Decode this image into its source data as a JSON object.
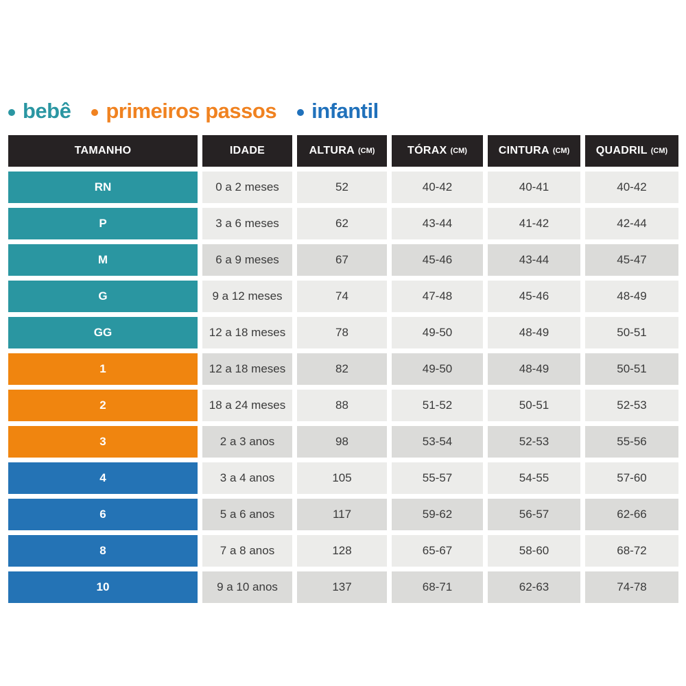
{
  "colors": {
    "header_bg": "#262223",
    "header_text": "#ffffff",
    "cell_light": "#ECECEA",
    "cell_dark": "#DBDBD9",
    "cell_text": "#3A3A3A",
    "group_bebe": "#2A96A1",
    "group_primeiros_passos": "#F0850F",
    "group_infantil": "#2473B5",
    "legend_bebe": "#2A96A2",
    "legend_primeiros_passos": "#F08220",
    "legend_infantil": "#2071BB"
  },
  "legend": {
    "items": [
      {
        "label": "bebê",
        "group": "bebe"
      },
      {
        "label": "primeiros passos",
        "group": "primeiros_passos"
      },
      {
        "label": "infantil",
        "group": "infantil"
      }
    ]
  },
  "table": {
    "headers": [
      {
        "label": "TAMANHO",
        "unit": ""
      },
      {
        "label": "IDADE",
        "unit": ""
      },
      {
        "label": "ALTURA",
        "unit": "(CM)"
      },
      {
        "label": "TÓRAX",
        "unit": "(CM)"
      },
      {
        "label": "CINTURA",
        "unit": "(CM)"
      },
      {
        "label": "QUADRIL",
        "unit": "(CM)"
      }
    ],
    "rows": [
      {
        "size": "RN",
        "group": "bebe",
        "age": "0 a 2 meses",
        "height": "52",
        "chest": "40-42",
        "waist": "40-41",
        "hip": "40-42",
        "shaded": false
      },
      {
        "size": "P",
        "group": "bebe",
        "age": "3 a 6 meses",
        "height": "62",
        "chest": "43-44",
        "waist": "41-42",
        "hip": "42-44",
        "shaded": false
      },
      {
        "size": "M",
        "group": "bebe",
        "age": "6 a 9 meses",
        "height": "67",
        "chest": "45-46",
        "waist": "43-44",
        "hip": "45-47",
        "shaded": true
      },
      {
        "size": "G",
        "group": "bebe",
        "age": "9 a 12 meses",
        "height": "74",
        "chest": "47-48",
        "waist": "45-46",
        "hip": "48-49",
        "shaded": false
      },
      {
        "size": "GG",
        "group": "bebe",
        "age": "12 a 18 meses",
        "height": "78",
        "chest": "49-50",
        "waist": "48-49",
        "hip": "50-51",
        "shaded": false
      },
      {
        "size": "1",
        "group": "primeiros_passos",
        "age": "12 a 18 meses",
        "height": "82",
        "chest": "49-50",
        "waist": "48-49",
        "hip": "50-51",
        "shaded": true
      },
      {
        "size": "2",
        "group": "primeiros_passos",
        "age": "18 a 24 meses",
        "height": "88",
        "chest": "51-52",
        "waist": "50-51",
        "hip": "52-53",
        "shaded": false
      },
      {
        "size": "3",
        "group": "primeiros_passos",
        "age": "2 a 3 anos",
        "height": "98",
        "chest": "53-54",
        "waist": "52-53",
        "hip": "55-56",
        "shaded": true
      },
      {
        "size": "4",
        "group": "infantil",
        "age": "3 a 4 anos",
        "height": "105",
        "chest": "55-57",
        "waist": "54-55",
        "hip": "57-60",
        "shaded": false
      },
      {
        "size": "6",
        "group": "infantil",
        "age": "5 a 6 anos",
        "height": "117",
        "chest": "59-62",
        "waist": "56-57",
        "hip": "62-66",
        "shaded": true
      },
      {
        "size": "8",
        "group": "infantil",
        "age": "7 a 8 anos",
        "height": "128",
        "chest": "65-67",
        "waist": "58-60",
        "hip": "68-72",
        "shaded": false
      },
      {
        "size": "10",
        "group": "infantil",
        "age": "9 a 10 anos",
        "height": "137",
        "chest": "68-71",
        "waist": "62-63",
        "hip": "74-78",
        "shaded": true
      }
    ]
  },
  "chart_data": {
    "type": "table",
    "title": "",
    "legend_entries": [
      "bebê",
      "primeiros passos",
      "infantil"
    ],
    "columns": [
      "TAMANHO",
      "IDADE",
      "ALTURA (CM)",
      "TÓRAX (CM)",
      "CINTURA (CM)",
      "QUADRIL (CM)"
    ],
    "rows": [
      [
        "RN",
        "0 a 2 meses",
        "52",
        "40-42",
        "40-41",
        "40-42"
      ],
      [
        "P",
        "3 a 6 meses",
        "62",
        "43-44",
        "41-42",
        "42-44"
      ],
      [
        "M",
        "6 a 9 meses",
        "67",
        "45-46",
        "43-44",
        "45-47"
      ],
      [
        "G",
        "9 a 12 meses",
        "74",
        "47-48",
        "45-46",
        "48-49"
      ],
      [
        "GG",
        "12 a 18 meses",
        "78",
        "49-50",
        "48-49",
        "50-51"
      ],
      [
        "1",
        "12 a 18 meses",
        "82",
        "49-50",
        "48-49",
        "50-51"
      ],
      [
        "2",
        "18 a 24 meses",
        "88",
        "51-52",
        "50-51",
        "52-53"
      ],
      [
        "3",
        "2 a 3 anos",
        "98",
        "53-54",
        "52-53",
        "55-56"
      ],
      [
        "4",
        "3 a 4 anos",
        "105",
        "55-57",
        "54-55",
        "57-60"
      ],
      [
        "6",
        "5 a 6 anos",
        "117",
        "59-62",
        "56-57",
        "62-66"
      ],
      [
        "8",
        "7 a 8 anos",
        "128",
        "65-67",
        "58-60",
        "68-72"
      ],
      [
        "10",
        "9 a 10 anos",
        "137",
        "68-71",
        "62-63",
        "74-78"
      ]
    ],
    "row_group_of_sizes": {
      "bebê": [
        "RN",
        "P",
        "M",
        "G",
        "GG"
      ],
      "primeiros passos": [
        "1",
        "2",
        "3"
      ],
      "infantil": [
        "4",
        "6",
        "8",
        "10"
      ]
    }
  }
}
